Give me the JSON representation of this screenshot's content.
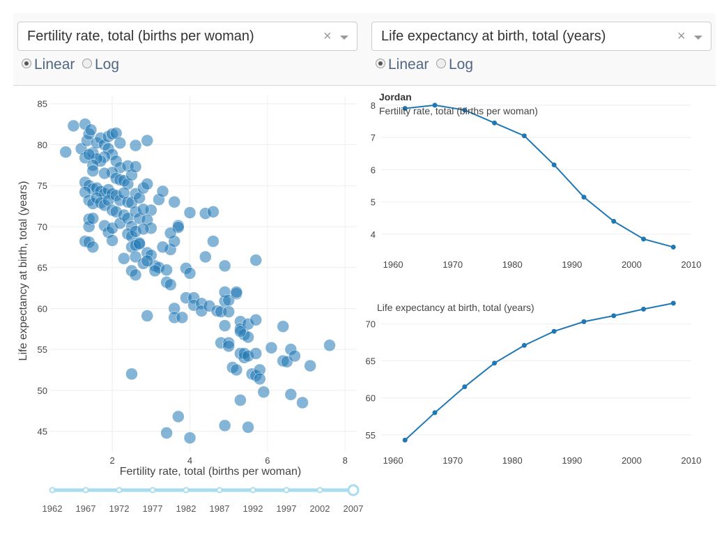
{
  "controls": {
    "x_dropdown": {
      "value": "Fertility rate, total (births per woman)",
      "clear": "×"
    },
    "y_dropdown": {
      "value": "Life expectancy at birth, total (years)",
      "clear": "×"
    },
    "x_scale": {
      "linear": "Linear",
      "log": "Log",
      "selected": "linear"
    },
    "y_scale": {
      "linear": "Linear",
      "log": "Log",
      "selected": "linear"
    }
  },
  "slider": {
    "marks": [
      "1962",
      "1967",
      "1972",
      "1977",
      "1982",
      "1987",
      "1992",
      "1997",
      "2002",
      "2007"
    ],
    "selected": "2007",
    "color": "#a8ddf0"
  },
  "chart_data": [
    {
      "type": "scatter",
      "name": "main-scatter",
      "xlabel": "Fertility rate, total (births per woman)",
      "ylabel": "Life expectancy at birth, total (years)",
      "xlim": [
        0.4,
        8.3
      ],
      "ylim": [
        42.5,
        86
      ],
      "xticks": [
        2,
        4,
        6,
        8
      ],
      "yticks": [
        45,
        50,
        55,
        60,
        65,
        70,
        75,
        80,
        85
      ],
      "color": "#1f77b4",
      "points": [
        [
          0.8,
          79.1
        ],
        [
          1.0,
          82.3
        ],
        [
          1.2,
          79.5
        ],
        [
          1.3,
          82.5
        ],
        [
          1.35,
          80.5
        ],
        [
          1.4,
          81.3
        ],
        [
          1.45,
          81.8
        ],
        [
          1.3,
          78.4
        ],
        [
          1.5,
          79.0
        ],
        [
          1.6,
          80.2
        ],
        [
          1.7,
          80.8
        ],
        [
          1.8,
          80.0
        ],
        [
          1.9,
          81.0
        ],
        [
          2.0,
          81.3
        ],
        [
          2.1,
          81.4
        ],
        [
          2.2,
          80.2
        ],
        [
          1.9,
          79.5
        ],
        [
          2.0,
          78.8
        ],
        [
          1.8,
          78.5
        ],
        [
          1.7,
          78.0
        ],
        [
          1.6,
          78.3
        ],
        [
          1.5,
          77.5
        ],
        [
          1.4,
          78.8
        ],
        [
          2.1,
          78.0
        ],
        [
          2.2,
          77.2
        ],
        [
          2.4,
          77.4
        ],
        [
          2.0,
          76.6
        ],
        [
          1.8,
          76.5
        ],
        [
          1.5,
          76.8
        ],
        [
          1.3,
          75.4
        ],
        [
          1.4,
          75.0
        ],
        [
          1.5,
          74.6
        ],
        [
          1.6,
          74.7
        ],
        [
          1.7,
          74.3
        ],
        [
          1.8,
          74.0
        ],
        [
          1.9,
          74.5
        ],
        [
          2.0,
          74.0
        ],
        [
          2.1,
          75.9
        ],
        [
          2.2,
          75.7
        ],
        [
          2.3,
          75.6
        ],
        [
          2.4,
          75.2
        ],
        [
          2.5,
          76.3
        ],
        [
          2.6,
          77.3
        ],
        [
          2.9,
          80.5
        ],
        [
          2.6,
          79.9
        ],
        [
          1.3,
          74.2
        ],
        [
          1.4,
          73.2
        ],
        [
          1.5,
          72.8
        ],
        [
          1.6,
          73.5
        ],
        [
          1.7,
          72.9
        ],
        [
          1.8,
          72.6
        ],
        [
          1.9,
          73.2
        ],
        [
          2.0,
          72.0
        ],
        [
          2.1,
          73.8
        ],
        [
          2.2,
          73.2
        ],
        [
          2.3,
          74.1
        ],
        [
          2.4,
          73.0
        ],
        [
          2.5,
          72.9
        ],
        [
          2.6,
          74.0
        ],
        [
          2.7,
          73.5
        ],
        [
          2.8,
          74.7
        ],
        [
          2.9,
          75.2
        ],
        [
          3.0,
          72.0
        ],
        [
          3.2,
          73.3
        ],
        [
          3.3,
          74.3
        ],
        [
          1.4,
          70.9
        ],
        [
          1.4,
          70.0
        ],
        [
          1.5,
          71.0
        ],
        [
          1.8,
          70.1
        ],
        [
          1.9,
          69.3
        ],
        [
          2.0,
          69.8
        ],
        [
          2.1,
          71.8
        ],
        [
          2.2,
          70.4
        ],
        [
          2.3,
          71.4
        ],
        [
          2.4,
          71.0
        ],
        [
          2.5,
          70.0
        ],
        [
          2.6,
          71.8
        ],
        [
          2.7,
          71.0
        ],
        [
          2.8,
          72.1
        ],
        [
          2.9,
          70.8
        ],
        [
          3.0,
          69.8
        ],
        [
          2.4,
          69.1
        ],
        [
          2.5,
          68.8
        ],
        [
          2.6,
          69.4
        ],
        [
          2.7,
          68.0
        ],
        [
          2.8,
          69.7
        ],
        [
          1.3,
          68.2
        ],
        [
          1.4,
          68.1
        ],
        [
          1.5,
          67.5
        ],
        [
          2.0,
          68.3
        ],
        [
          2.5,
          67.5
        ],
        [
          2.6,
          67.7
        ],
        [
          2.7,
          67.9
        ],
        [
          2.9,
          66.8
        ],
        [
          3.0,
          66.5
        ],
        [
          3.1,
          65.2
        ],
        [
          3.2,
          65.0
        ],
        [
          2.3,
          66.1
        ],
        [
          2.6,
          66.3
        ],
        [
          2.8,
          65.5
        ],
        [
          2.9,
          65.8
        ],
        [
          3.1,
          64.6
        ],
        [
          2.5,
          64.6
        ],
        [
          2.6,
          64.1
        ],
        [
          3.4,
          64.7
        ],
        [
          3.5,
          67.2
        ],
        [
          3.6,
          68.2
        ],
        [
          3.7,
          70.1
        ],
        [
          3.7,
          69.9
        ],
        [
          3.5,
          69.2
        ],
        [
          3.3,
          67.5
        ],
        [
          3.6,
          73.0
        ],
        [
          4.0,
          71.7
        ],
        [
          4.4,
          71.6
        ],
        [
          4.6,
          71.8
        ],
        [
          4.6,
          68.2
        ],
        [
          4.4,
          66.3
        ],
        [
          4.9,
          65.2
        ],
        [
          5.7,
          65.9
        ],
        [
          3.9,
          64.9
        ],
        [
          4.0,
          64.3
        ],
        [
          3.4,
          63.2
        ],
        [
          3.5,
          62.9
        ],
        [
          3.9,
          61.3
        ],
        [
          4.1,
          61.3
        ],
        [
          4.1,
          60.4
        ],
        [
          4.3,
          60.6
        ],
        [
          4.3,
          59.7
        ],
        [
          4.5,
          60.3
        ],
        [
          4.7,
          59.7
        ],
        [
          4.8,
          59.6
        ],
        [
          4.9,
          60.9
        ],
        [
          4.9,
          62.0
        ],
        [
          5.0,
          61.0
        ],
        [
          5.2,
          61.8
        ],
        [
          5.2,
          62.0
        ],
        [
          5.0,
          59.6
        ],
        [
          3.6,
          60.0
        ],
        [
          3.6,
          58.9
        ],
        [
          3.8,
          58.9
        ],
        [
          2.9,
          59.1
        ],
        [
          4.9,
          57.9
        ],
        [
          5.3,
          58.4
        ],
        [
          5.3,
          57.5
        ],
        [
          5.4,
          56.8
        ],
        [
          5.5,
          56.5
        ],
        [
          5.5,
          58.1
        ],
        [
          5.7,
          58.6
        ],
        [
          5.3,
          57.2
        ],
        [
          6.4,
          57.8
        ],
        [
          4.8,
          55.8
        ],
        [
          5.0,
          55.8
        ],
        [
          5.0,
          55.4
        ],
        [
          5.3,
          54.5
        ],
        [
          5.4,
          54.0
        ],
        [
          5.4,
          54.5
        ],
        [
          5.5,
          54.2
        ],
        [
          5.7,
          54.5
        ],
        [
          6.1,
          55.2
        ],
        [
          6.4,
          53.6
        ],
        [
          6.5,
          53.5
        ],
        [
          6.6,
          55.0
        ],
        [
          6.7,
          54.2
        ],
        [
          7.1,
          53.0
        ],
        [
          7.6,
          55.5
        ],
        [
          5.1,
          52.8
        ],
        [
          5.2,
          52.5
        ],
        [
          5.6,
          52.0
        ],
        [
          5.7,
          51.8
        ],
        [
          5.8,
          52.5
        ],
        [
          5.8,
          51.4
        ],
        [
          2.5,
          52.0
        ],
        [
          5.9,
          49.8
        ],
        [
          6.6,
          49.5
        ],
        [
          6.9,
          48.5
        ],
        [
          5.3,
          48.8
        ],
        [
          3.7,
          46.8
        ],
        [
          4.9,
          45.7
        ],
        [
          5.5,
          45.5
        ],
        [
          3.4,
          44.8
        ],
        [
          4.0,
          44.2
        ]
      ]
    },
    {
      "type": "line",
      "name": "fertility-timeseries",
      "title": "Jordan",
      "series_label": "Fertility rate, total (births per woman)",
      "x": [
        1962,
        1967,
        1972,
        1977,
        1982,
        1987,
        1992,
        1997,
        2002,
        2007
      ],
      "y": [
        7.9,
        8.0,
        7.85,
        7.45,
        7.05,
        6.15,
        5.15,
        4.4,
        3.85,
        3.6
      ],
      "xlim": [
        1958,
        2010
      ],
      "ylim": [
        3.35,
        8.3
      ],
      "xticks": [
        1960,
        1970,
        1980,
        1990,
        2000,
        2010
      ],
      "yticks": [
        4,
        5,
        6,
        7,
        8
      ],
      "color": "#1f77b4"
    },
    {
      "type": "line",
      "name": "life-expectancy-timeseries",
      "series_label": "Life expectancy at birth, total (years)",
      "x": [
        1962,
        1967,
        1972,
        1977,
        1982,
        1987,
        1992,
        1997,
        2002,
        2007
      ],
      "y": [
        54.3,
        58.0,
        61.5,
        64.7,
        67.1,
        69.0,
        70.3,
        71.1,
        72.0,
        72.8
      ],
      "xlim": [
        1958,
        2010
      ],
      "ylim": [
        53.0,
        74.2
      ],
      "xticks": [
        1960,
        1970,
        1980,
        1990,
        2000,
        2010
      ],
      "yticks": [
        55,
        60,
        65,
        70
      ],
      "color": "#1f77b4"
    }
  ]
}
